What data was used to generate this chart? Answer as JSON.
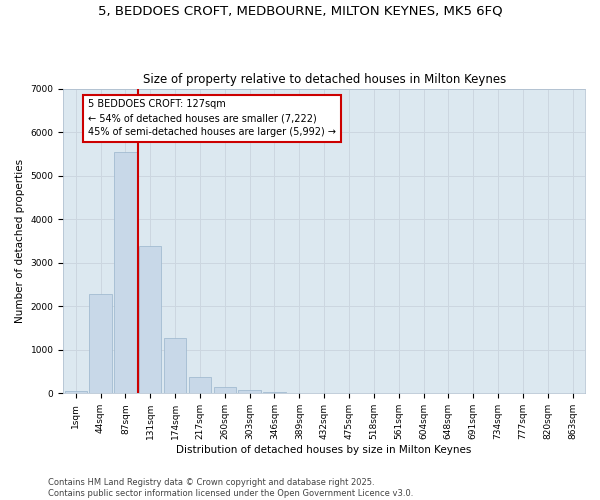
{
  "title_line1": "5, BEDDOES CROFT, MEDBOURNE, MILTON KEYNES, MK5 6FQ",
  "title_line2": "Size of property relative to detached houses in Milton Keynes",
  "xlabel": "Distribution of detached houses by size in Milton Keynes",
  "ylabel": "Number of detached properties",
  "categories": [
    "1sqm",
    "44sqm",
    "87sqm",
    "131sqm",
    "174sqm",
    "217sqm",
    "260sqm",
    "303sqm",
    "346sqm",
    "389sqm",
    "432sqm",
    "475sqm",
    "518sqm",
    "561sqm",
    "604sqm",
    "648sqm",
    "691sqm",
    "734sqm",
    "777sqm",
    "820sqm",
    "863sqm"
  ],
  "values": [
    50,
    2280,
    5550,
    3380,
    1280,
    370,
    155,
    80,
    20,
    5,
    2,
    1,
    0,
    0,
    0,
    0,
    0,
    0,
    0,
    0,
    0
  ],
  "bar_color": "#c8d8e8",
  "bar_edge_color": "#9ab5cc",
  "vline_x": 2.5,
  "vline_color": "#cc0000",
  "annotation_text": "5 BEDDOES CROFT: 127sqm\n← 54% of detached houses are smaller (7,222)\n45% of semi-detached houses are larger (5,992) →",
  "annotation_box_color": "#cc0000",
  "ylim": [
    0,
    7000
  ],
  "yticks": [
    0,
    1000,
    2000,
    3000,
    4000,
    5000,
    6000,
    7000
  ],
  "grid_color": "#ccd6e0",
  "bg_color": "#dce8f0",
  "footer_text": "Contains HM Land Registry data © Crown copyright and database right 2025.\nContains public sector information licensed under the Open Government Licence v3.0.",
  "title_fontsize": 9.5,
  "subtitle_fontsize": 8.5,
  "label_fontsize": 7.5,
  "tick_fontsize": 6.5,
  "annotation_fontsize": 7,
  "footer_fontsize": 6
}
